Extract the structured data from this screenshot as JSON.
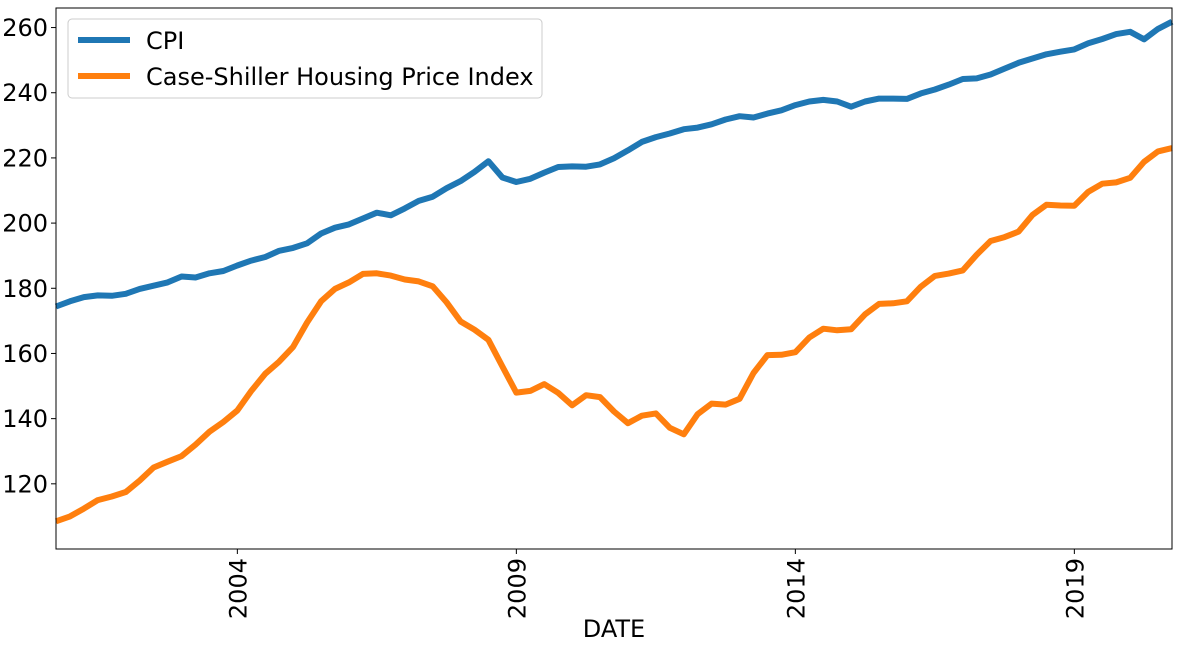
{
  "chart_data": {
    "type": "line",
    "xlabel": "DATE",
    "ylabel": "",
    "xlim": [
      2000.75,
      2020.75
    ],
    "ylim": [
      100,
      266
    ],
    "x_ticks": [
      2004,
      2009,
      2014,
      2019
    ],
    "x_tick_labels": [
      "2004",
      "2009",
      "2014",
      "2019"
    ],
    "y_ticks": [
      120,
      140,
      160,
      180,
      200,
      220,
      240,
      260
    ],
    "y_tick_labels": [
      "120",
      "140",
      "160",
      "180",
      "200",
      "220",
      "240",
      "260"
    ],
    "grid": false,
    "legend_position": "top-left",
    "x_units": "year (decimal)",
    "series": [
      {
        "name": "CPI",
        "color": "#1f77b4",
        "x": [
          2000.75,
          2001.0,
          2001.25,
          2001.5,
          2001.75,
          2002.0,
          2002.25,
          2002.5,
          2002.75,
          2003.0,
          2003.25,
          2003.5,
          2003.75,
          2004.0,
          2004.25,
          2004.5,
          2004.75,
          2005.0,
          2005.25,
          2005.5,
          2005.75,
          2006.0,
          2006.25,
          2006.5,
          2006.75,
          2007.0,
          2007.25,
          2007.5,
          2007.75,
          2008.0,
          2008.25,
          2008.5,
          2008.75,
          2009.0,
          2009.25,
          2009.5,
          2009.75,
          2010.0,
          2010.25,
          2010.5,
          2010.75,
          2011.0,
          2011.25,
          2011.5,
          2011.75,
          2012.0,
          2012.25,
          2012.5,
          2012.75,
          2013.0,
          2013.25,
          2013.5,
          2013.75,
          2014.0,
          2014.25,
          2014.5,
          2014.75,
          2015.0,
          2015.25,
          2015.5,
          2015.75,
          2016.0,
          2016.25,
          2016.5,
          2016.75,
          2017.0,
          2017.25,
          2017.5,
          2017.75,
          2018.0,
          2018.25,
          2018.5,
          2018.75,
          2019.0,
          2019.25,
          2019.5,
          2019.75,
          2020.0,
          2020.25,
          2020.5,
          2020.75
        ],
        "values": [
          174.4,
          176.0,
          177.3,
          177.8,
          177.7,
          178.3,
          179.8,
          180.8,
          181.8,
          183.6,
          183.3,
          184.6,
          185.3,
          187.0,
          188.5,
          189.6,
          191.5,
          192.4,
          193.8,
          196.8,
          198.6,
          199.6,
          201.4,
          203.2,
          202.4,
          204.5,
          206.8,
          208.1,
          210.7,
          212.9,
          215.7,
          219.0,
          214.0,
          212.6,
          213.6,
          215.5,
          217.2,
          217.4,
          217.3,
          218.0,
          219.9,
          222.3,
          224.9,
          226.4,
          227.5,
          228.8,
          229.3,
          230.3,
          231.8,
          232.8,
          232.4,
          233.6,
          234.6,
          236.2,
          237.3,
          237.8,
          237.3,
          235.7,
          237.3,
          238.2,
          238.2,
          238.1,
          239.8,
          241.0,
          242.5,
          244.2,
          244.4,
          245.6,
          247.4,
          249.2,
          250.5,
          251.8,
          252.6,
          253.3,
          255.2,
          256.5,
          258.0,
          258.7,
          256.4,
          259.6,
          261.8
        ]
      },
      {
        "name": "Case-Shiller Housing Price Index",
        "color": "#ff7f0e",
        "x": [
          2000.75,
          2001.0,
          2001.25,
          2001.5,
          2001.75,
          2002.0,
          2002.25,
          2002.5,
          2002.75,
          2003.0,
          2003.25,
          2003.5,
          2003.75,
          2004.0,
          2004.25,
          2004.5,
          2004.75,
          2005.0,
          2005.25,
          2005.5,
          2005.75,
          2006.0,
          2006.25,
          2006.5,
          2006.75,
          2007.0,
          2007.25,
          2007.5,
          2007.75,
          2008.0,
          2008.25,
          2008.5,
          2008.75,
          2009.0,
          2009.25,
          2009.5,
          2009.75,
          2010.0,
          2010.25,
          2010.5,
          2010.75,
          2011.0,
          2011.25,
          2011.5,
          2011.75,
          2012.0,
          2012.25,
          2012.5,
          2012.75,
          2013.0,
          2013.25,
          2013.5,
          2013.75,
          2014.0,
          2014.25,
          2014.5,
          2014.75,
          2015.0,
          2015.25,
          2015.5,
          2015.75,
          2016.0,
          2016.25,
          2016.5,
          2016.75,
          2017.0,
          2017.25,
          2017.5,
          2017.75,
          2018.0,
          2018.25,
          2018.5,
          2018.75,
          2019.0,
          2019.25,
          2019.5,
          2019.75,
          2020.0,
          2020.25,
          2020.5,
          2020.75
        ],
        "values": [
          108.5,
          110.0,
          112.4,
          115.0,
          116.1,
          117.5,
          121.0,
          125.0,
          126.8,
          128.5,
          132.0,
          136.0,
          139.0,
          142.5,
          148.5,
          153.8,
          157.5,
          162.0,
          169.5,
          176.0,
          179.8,
          181.8,
          184.4,
          184.6,
          183.9,
          182.7,
          182.1,
          180.6,
          175.7,
          169.8,
          167.3,
          164.2,
          156.0,
          148.0,
          148.5,
          150.6,
          147.9,
          144.1,
          147.2,
          146.6,
          142.2,
          138.6,
          140.9,
          141.6,
          137.2,
          135.2,
          141.4,
          144.6,
          144.3,
          146.1,
          154.0,
          159.5,
          159.6,
          160.4,
          164.9,
          167.6,
          167.1,
          167.4,
          172.0,
          175.2,
          175.4,
          176.0,
          180.5,
          183.8,
          184.5,
          185.5,
          190.3,
          194.5,
          195.7,
          197.4,
          202.5,
          205.6,
          205.4,
          205.3,
          209.6,
          212.1,
          212.5,
          213.9,
          218.8,
          222.0,
          223.0
        ]
      }
    ]
  }
}
